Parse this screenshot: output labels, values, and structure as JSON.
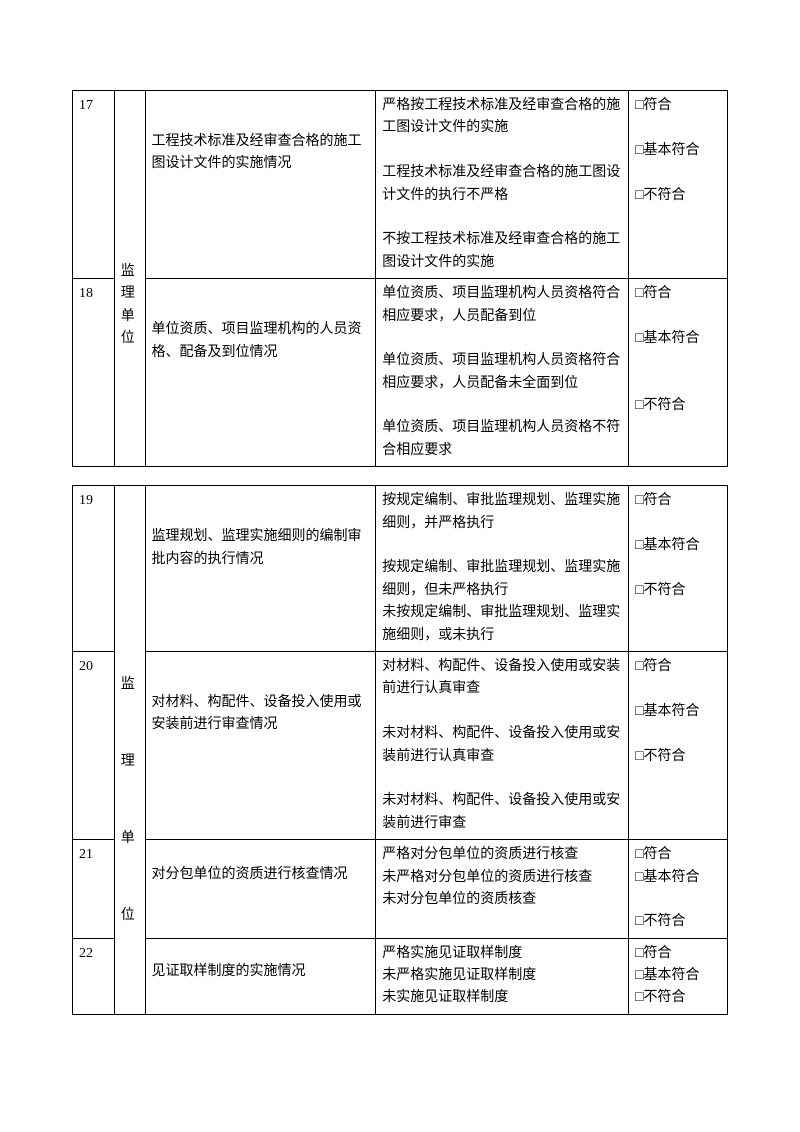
{
  "options": {
    "a": "□符合",
    "b": "□基本符合",
    "c": "□不符合"
  },
  "t1": {
    "r17": {
      "num": "17",
      "item": "工程技术标准及经审查合格的施工图设计文件的实施情况",
      "desc": "严格按工程技术标准及经审查合格的施工图设计文件的实施\n\n工程技术标准及经审查合格的施工图设计文件的执行不严格\n\n不按工程技术标准及经审查合格的施工图设计文件的实施"
    },
    "r18": {
      "num": "18",
      "cat_l1": "监",
      "cat_l2": "理",
      "cat_l3": "单",
      "cat_l4": "位",
      "item": "单位资质、项目监理机构的人员资格、配备及到位情况",
      "desc": "单位资质、项目监理机构人员资格符合相应要求，人员配备到位\n\n单位资质、项目监理机构人员资格符合相应要求，人员配备未全面到位\n\n单位资质、项目监理机构人员资格不符合相应要求"
    }
  },
  "t2": {
    "cat_l1": "监",
    "cat_l2": "理",
    "cat_l3": "单",
    "cat_l4": "位",
    "r19": {
      "num": "19",
      "item": "监理规划、监理实施细则的编制审批内容的执行情况",
      "desc": "按规定编制、审批监理规划、监理实施细则，并严格执行\n\n按规定编制、审批监理规划、监理实施细则，但未严格执行\n未按规定编制、审批监理规划、监理实施细则，或未执行"
    },
    "r20": {
      "num": "20",
      "item": "对材料、构配件、设备投入使用或安装前进行审查情况",
      "desc": "对材料、构配件、设备投入使用或安装前进行认真审查\n\n未对材料、构配件、设备投入使用或安装前进行认真审查\n\n未对材料、构配件、设备投入使用或安装前进行审查"
    },
    "r21": {
      "num": "21",
      "item": "对分包单位的资质进行核查情况",
      "desc": "严格对分包单位的资质进行核查\n未严格对分包单位的资质进行核查\n未对分包单位的资质核查"
    },
    "r22": {
      "num": "22",
      "item": "见证取样制度的实施情况",
      "desc": "严格实施见证取样制度\n未严格实施见证取样制度\n未实施见证取样制度"
    }
  }
}
